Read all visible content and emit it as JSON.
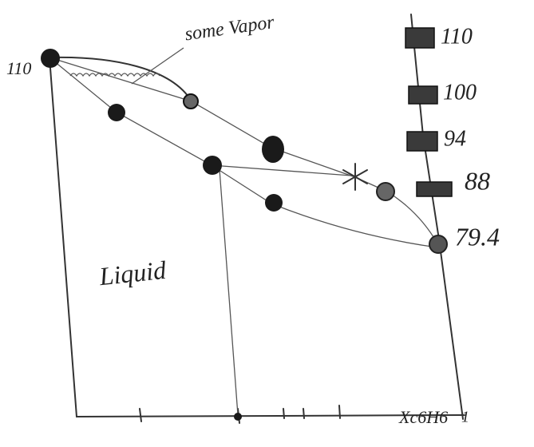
{
  "diagram": {
    "left_label": "110",
    "annotation": "some Vapor",
    "right_labels": [
      "110",
      "100",
      "94",
      "88",
      "79.4"
    ],
    "region_label": "Liquid",
    "x_axis_label": "Xc6H6",
    "x_axis_end": "1"
  }
}
